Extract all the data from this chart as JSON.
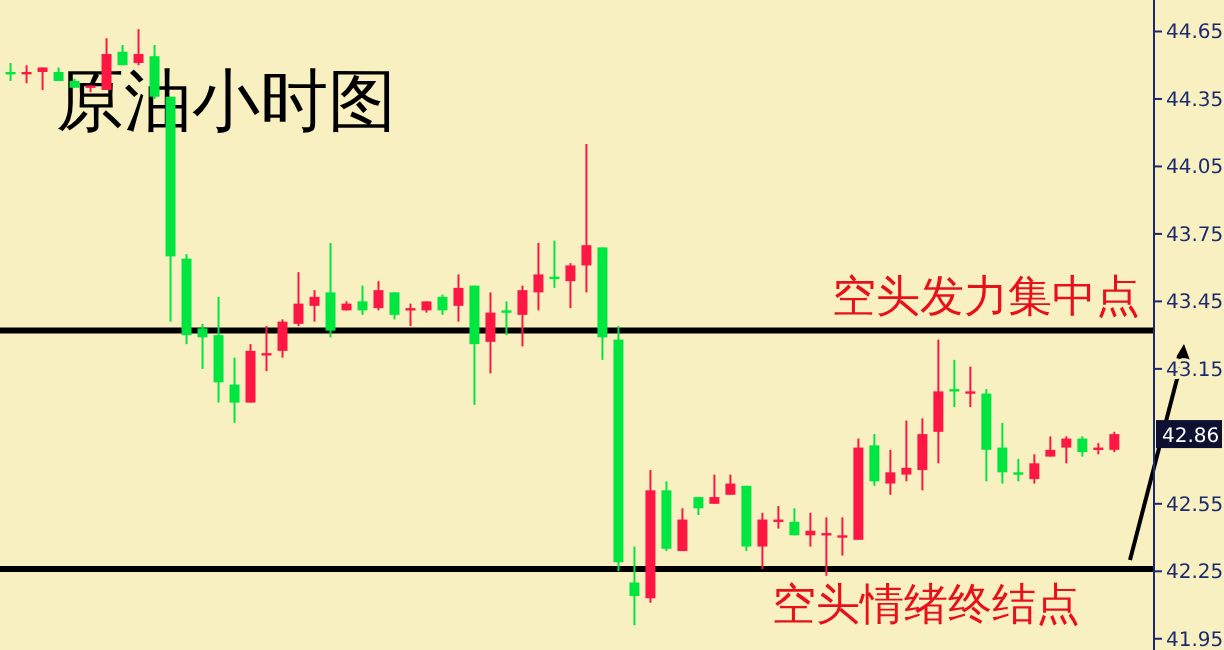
{
  "chart_data": {
    "type": "candlestick",
    "title": "原油小时图",
    "categories": [
      null,
      null,
      null,
      null,
      null,
      null,
      null,
      null,
      null,
      null,
      null,
      null,
      null,
      null,
      null,
      null,
      null,
      null,
      null,
      null,
      null,
      null,
      null,
      null,
      null,
      null,
      null,
      null,
      null,
      null,
      null,
      null,
      null,
      null,
      null,
      null,
      null,
      null,
      null,
      null,
      null,
      null,
      null,
      null,
      null,
      null,
      null,
      null,
      null,
      null,
      null,
      null,
      null,
      null,
      null,
      null,
      null,
      null,
      null,
      null,
      null,
      null,
      null,
      null,
      null,
      null,
      null,
      null,
      null,
      null
    ],
    "ohlc": [
      [
        44.47,
        44.51,
        44.43,
        44.46
      ],
      [
        44.46,
        44.5,
        44.42,
        44.47
      ],
      [
        44.47,
        44.49,
        44.39,
        44.49
      ],
      [
        44.47,
        44.49,
        44.43,
        44.43
      ],
      [
        44.43,
        44.44,
        44.4,
        44.4
      ],
      [
        44.4,
        44.41,
        44.38,
        44.41
      ],
      [
        44.39,
        44.62,
        44.39,
        44.55
      ],
      [
        44.56,
        44.59,
        44.5,
        44.5
      ],
      [
        44.51,
        44.66,
        44.5,
        44.55
      ],
      [
        44.54,
        44.59,
        44.35,
        44.36
      ],
      [
        44.36,
        44.36,
        43.36,
        43.65
      ],
      [
        43.64,
        43.66,
        43.26,
        43.3
      ],
      [
        43.33,
        43.35,
        43.15,
        43.29
      ],
      [
        43.3,
        43.47,
        43.0,
        43.09
      ],
      [
        43.08,
        43.2,
        42.91,
        43.0
      ],
      [
        43.0,
        43.26,
        43.0,
        43.23
      ],
      [
        43.21,
        43.34,
        43.14,
        43.22
      ],
      [
        43.23,
        43.37,
        43.2,
        43.36
      ],
      [
        43.35,
        43.58,
        43.34,
        43.44
      ],
      [
        43.43,
        43.5,
        43.36,
        43.47
      ],
      [
        43.49,
        43.71,
        43.29,
        43.32
      ],
      [
        43.41,
        43.45,
        43.41,
        43.44
      ],
      [
        43.45,
        43.52,
        43.39,
        43.41
      ],
      [
        43.42,
        43.54,
        43.41,
        43.5
      ],
      [
        43.49,
        43.49,
        43.37,
        43.39
      ],
      [
        43.41,
        43.44,
        43.34,
        43.42
      ],
      [
        43.41,
        43.45,
        43.4,
        43.45
      ],
      [
        43.47,
        43.48,
        43.39,
        43.41
      ],
      [
        43.43,
        43.57,
        43.36,
        43.51
      ],
      [
        43.52,
        43.52,
        42.99,
        43.26
      ],
      [
        43.27,
        43.49,
        43.13,
        43.4
      ],
      [
        43.41,
        43.45,
        43.3,
        43.4
      ],
      [
        43.39,
        43.52,
        43.25,
        43.5
      ],
      [
        43.49,
        43.71,
        43.41,
        43.57
      ],
      [
        43.56,
        43.72,
        43.51,
        43.55
      ],
      [
        43.54,
        43.62,
        43.42,
        43.61
      ],
      [
        43.61,
        44.15,
        43.49,
        43.7
      ],
      [
        43.69,
        43.69,
        43.19,
        43.29
      ],
      [
        43.28,
        43.34,
        42.25,
        42.29
      ],
      [
        42.2,
        42.36,
        42.01,
        42.14
      ],
      [
        42.13,
        42.7,
        42.11,
        42.61
      ],
      [
        42.61,
        42.65,
        42.34,
        42.35
      ],
      [
        42.34,
        42.53,
        42.34,
        42.48
      ],
      [
        42.58,
        42.58,
        42.5,
        42.53
      ],
      [
        42.55,
        42.68,
        42.55,
        42.58
      ],
      [
        42.59,
        42.68,
        42.59,
        42.64
      ],
      [
        42.63,
        42.63,
        42.34,
        42.36
      ],
      [
        42.36,
        42.51,
        42.26,
        42.48
      ],
      [
        42.47,
        42.54,
        42.44,
        42.48
      ],
      [
        42.47,
        42.53,
        42.41,
        42.41
      ],
      [
        42.41,
        42.51,
        42.36,
        42.43
      ],
      [
        42.41,
        42.49,
        42.23,
        42.42
      ],
      [
        42.4,
        42.49,
        42.32,
        42.41
      ],
      [
        42.39,
        42.84,
        42.39,
        42.8
      ],
      [
        42.81,
        42.86,
        42.63,
        42.65
      ],
      [
        42.64,
        42.79,
        42.59,
        42.69
      ],
      [
        42.68,
        42.92,
        42.65,
        42.71
      ],
      [
        42.7,
        42.93,
        42.61,
        42.86
      ],
      [
        42.87,
        43.28,
        42.73,
        43.05
      ],
      [
        43.06,
        43.19,
        42.98,
        43.05
      ],
      [
        43.04,
        43.16,
        42.98,
        43.05
      ],
      [
        43.04,
        43.06,
        42.65,
        42.79
      ],
      [
        42.8,
        42.91,
        42.64,
        42.69
      ],
      [
        42.69,
        42.75,
        42.65,
        42.68
      ],
      [
        42.66,
        42.77,
        42.64,
        42.73
      ],
      [
        42.76,
        42.85,
        42.76,
        42.79
      ],
      [
        42.8,
        42.85,
        42.73,
        42.84
      ],
      [
        42.84,
        42.85,
        42.76,
        42.78
      ],
      [
        42.79,
        42.82,
        42.77,
        42.8
      ],
      [
        42.79,
        42.87,
        42.78,
        42.86
      ]
    ],
    "colors": [
      "#00e640",
      "#ff1744",
      "#ff1744",
      "#00e640",
      "#00e640",
      "#ff1744",
      "#ff1744",
      "#00e640",
      "#ff1744",
      "#00e640",
      "#00e640",
      "#00e640",
      "#00e640",
      "#00e640",
      "#00e640",
      "#ff1744",
      "#ff1744",
      "#ff1744",
      "#ff1744",
      "#ff1744",
      "#00e640",
      "#ff1744",
      "#00e640",
      "#ff1744",
      "#00e640",
      "#ff1744",
      "#ff1744",
      "#00e640",
      "#ff1744",
      "#00e640",
      "#ff1744",
      "#00e640",
      "#ff1744",
      "#ff1744",
      "#00e640",
      "#ff1744",
      "#ff1744",
      "#00e640",
      "#00e640",
      "#00e640",
      "#ff1744",
      "#00e640",
      "#ff1744",
      "#00e640",
      "#ff1744",
      "#ff1744",
      "#00e640",
      "#ff1744",
      "#ff1744",
      "#00e640",
      "#ff1744",
      "#ff1744",
      "#ff1744",
      "#ff1744",
      "#00e640",
      "#ff1744",
      "#ff1744",
      "#ff1744",
      "#ff1744",
      "#00e640",
      "#ff1744",
      "#00e640",
      "#00e640",
      "#00e640",
      "#ff1744",
      "#ff1744",
      "#ff1744",
      "#00e640",
      "#ff1744",
      "#ff1744"
    ],
    "ylim": [
      41.9,
      44.79
    ],
    "yticks": [
      44.65,
      44.35,
      44.05,
      43.75,
      43.45,
      43.15,
      42.55,
      42.25,
      41.95
    ],
    "ref_lines": [
      {
        "axis": "y",
        "value": 43.32,
        "color": "#000000"
      },
      {
        "axis": "y",
        "value": 42.26,
        "color": "#000000"
      }
    ],
    "annotations": [
      {
        "text": "空头发力集中点",
        "y": 43.32
      },
      {
        "text": "空头情绪终结点",
        "y": 42.26
      },
      "42.86"
    ],
    "grid": false
  }
}
